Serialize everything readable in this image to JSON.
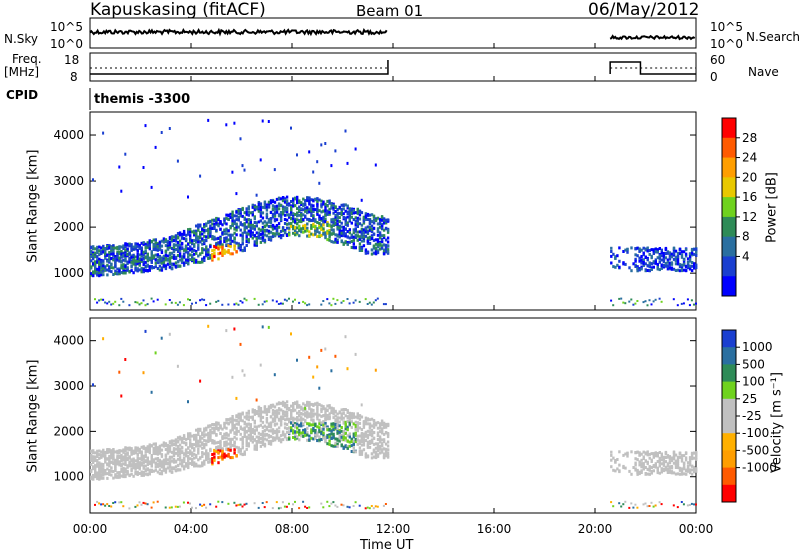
{
  "header": {
    "radar": "Kapuskasing (fitACF)",
    "beam": "Beam 01",
    "date": "06/May/2012"
  },
  "top_panel": {
    "left_label": "N.Sky",
    "left_ticks": [
      "10^5",
      "10^0"
    ],
    "right_label": "N.Search",
    "right_ticks": [
      "10^5",
      "10^0"
    ]
  },
  "freq_panel": {
    "left_label_1": "Freq.",
    "left_label_2": "[MHz]",
    "left_ticks": [
      "18",
      "8"
    ],
    "right_label": "Nave",
    "right_ticks": [
      "60",
      "0"
    ]
  },
  "cpid": {
    "label": "CPID",
    "value": "themis -3300"
  },
  "colorbars": {
    "power": {
      "label": "Power [dB]",
      "ticks": [
        "28",
        "24",
        "20",
        "16",
        "12",
        "8",
        "4"
      ],
      "colors": [
        "#ff0000",
        "#ff5a00",
        "#ff9e00",
        "#e8c800",
        "#6fd21e",
        "#2e8b57",
        "#2a6fa0",
        "#1a3fd0",
        "#0000ff"
      ]
    },
    "velocity": {
      "label": "Velocity [m s⁻¹]",
      "ticks": [
        "1000",
        "500",
        "100",
        "25",
        "-25",
        "-100",
        "-500",
        "-1000"
      ],
      "colors": [
        "#1a3fd0",
        "#2a6fa0",
        "#2e8b57",
        "#6fd21e",
        "#c0c0c0",
        "#c0c0c0",
        "#ffb000",
        "#ff9e00",
        "#ff5a00",
        "#ff0000"
      ]
    }
  },
  "chart_data": [
    {
      "type": "heatmap",
      "name": "power",
      "ylabel": "Slant Range [km]",
      "xlabel": "",
      "ylim": [
        200,
        4500
      ],
      "yticks": [
        "4000",
        "3000",
        "2000",
        "1000"
      ],
      "xlim_hours": [
        0,
        24
      ],
      "echo_band": {
        "x": [
          0,
          1,
          2,
          3,
          4,
          5,
          6,
          7,
          8,
          9,
          10,
          11,
          11.8
        ],
        "center_km": [
          1250,
          1300,
          1350,
          1420,
          1600,
          1750,
          1950,
          2150,
          2250,
          2200,
          2050,
          1850,
          1800
        ],
        "width_km": [
          650,
          650,
          650,
          700,
          800,
          900,
          950,
          900,
          850,
          850,
          900,
          900,
          800
        ]
      },
      "late_band": {
        "x_hours": [
          20.6,
          24
        ],
        "center_km": 1300,
        "width_km": 500
      }
    },
    {
      "type": "heatmap",
      "name": "velocity",
      "ylabel": "Slant Range [km]",
      "xlabel": "Time UT",
      "ylim": [
        200,
        4500
      ],
      "yticks": [
        "4000",
        "3000",
        "2000",
        "1000"
      ],
      "xticks": [
        "00:00",
        "04:00",
        "08:00",
        "12:00",
        "16:00",
        "20:00",
        "00:00"
      ],
      "xlim_hours": [
        0,
        24
      ]
    }
  ]
}
